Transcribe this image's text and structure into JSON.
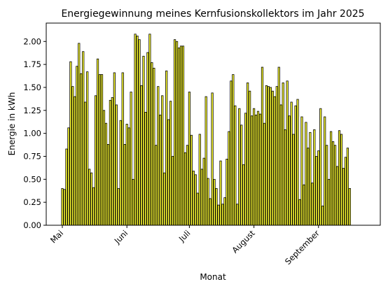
{
  "chart_data": {
    "type": "bar",
    "title": "Energiegewinnung meines Kernfusionskollektors im Jahr 2025",
    "xlabel": "Monat",
    "ylabel": "Energie in kWh",
    "ylim": [
      0,
      2.2
    ],
    "y_ticks": [
      0.0,
      0.25,
      0.5,
      0.75,
      1.0,
      1.25,
      1.5,
      1.75,
      2.0
    ],
    "y_tick_labels": [
      "0.00",
      "0.25",
      "0.50",
      "0.75",
      "1.00",
      "1.25",
      "1.50",
      "1.75",
      "2.00"
    ],
    "x_start_date": "2025-05-01",
    "x_ticks": [
      {
        "label": "Mai",
        "date": "2025-05-01"
      },
      {
        "label": "Juni",
        "date": "2025-06-01"
      },
      {
        "label": "Juli",
        "date": "2025-07-01"
      },
      {
        "label": "August",
        "date": "2025-08-01"
      },
      {
        "label": "September",
        "date": "2025-09-01"
      }
    ],
    "bar_color": "#ffff33",
    "edge_color": "#000000",
    "grid": false,
    "values": [
      0.4,
      0.39,
      0.83,
      1.06,
      1.78,
      1.51,
      1.4,
      1.73,
      1.98,
      1.65,
      1.89,
      1.34,
      1.67,
      0.61,
      0.57,
      0.41,
      1.41,
      1.81,
      1.64,
      1.64,
      1.25,
      1.11,
      0.88,
      1.36,
      1.39,
      1.66,
      1.31,
      0.4,
      1.14,
      1.66,
      0.88,
      1.1,
      1.06,
      1.45,
      0.5,
      2.08,
      2.06,
      2.02,
      1.52,
      1.84,
      1.23,
      1.88,
      2.08,
      1.77,
      1.71,
      0.87,
      1.51,
      1.2,
      1.41,
      0.57,
      1.68,
      1.15,
      1.35,
      0.75,
      2.02,
      2.0,
      1.93,
      1.95,
      1.95,
      0.79,
      0.87,
      1.45,
      0.98,
      0.59,
      0.55,
      0.35,
      0.99,
      0.61,
      0.73,
      1.4,
      0.51,
      0.29,
      1.44,
      0.5,
      0.4,
      0.22,
      0.7,
      0.23,
      0.3,
      0.72,
      1.02,
      1.57,
      1.64,
      1.3,
      0.23,
      1.27,
      1.09,
      0.66,
      1.22,
      1.55,
      1.46,
      1.19,
      1.27,
      1.2,
      1.24,
      1.21,
      1.72,
      1.11,
      1.52,
      1.51,
      1.5,
      1.46,
      1.4,
      1.51,
      1.72,
      1.31,
      1.55,
      1.04,
      1.57,
      1.19,
      1.34,
      0.99,
      1.3,
      1.37,
      0.28,
      1.18,
      0.44,
      1.12,
      0.84,
      1.01,
      0.46,
      1.04,
      0.75,
      0.81,
      1.27,
      0.21,
      1.18,
      0.87,
      0.5,
      1.02,
      0.91,
      0.87,
      0.64,
      1.03,
      0.99,
      0.62,
      0.74,
      0.84,
      0.4
    ]
  }
}
